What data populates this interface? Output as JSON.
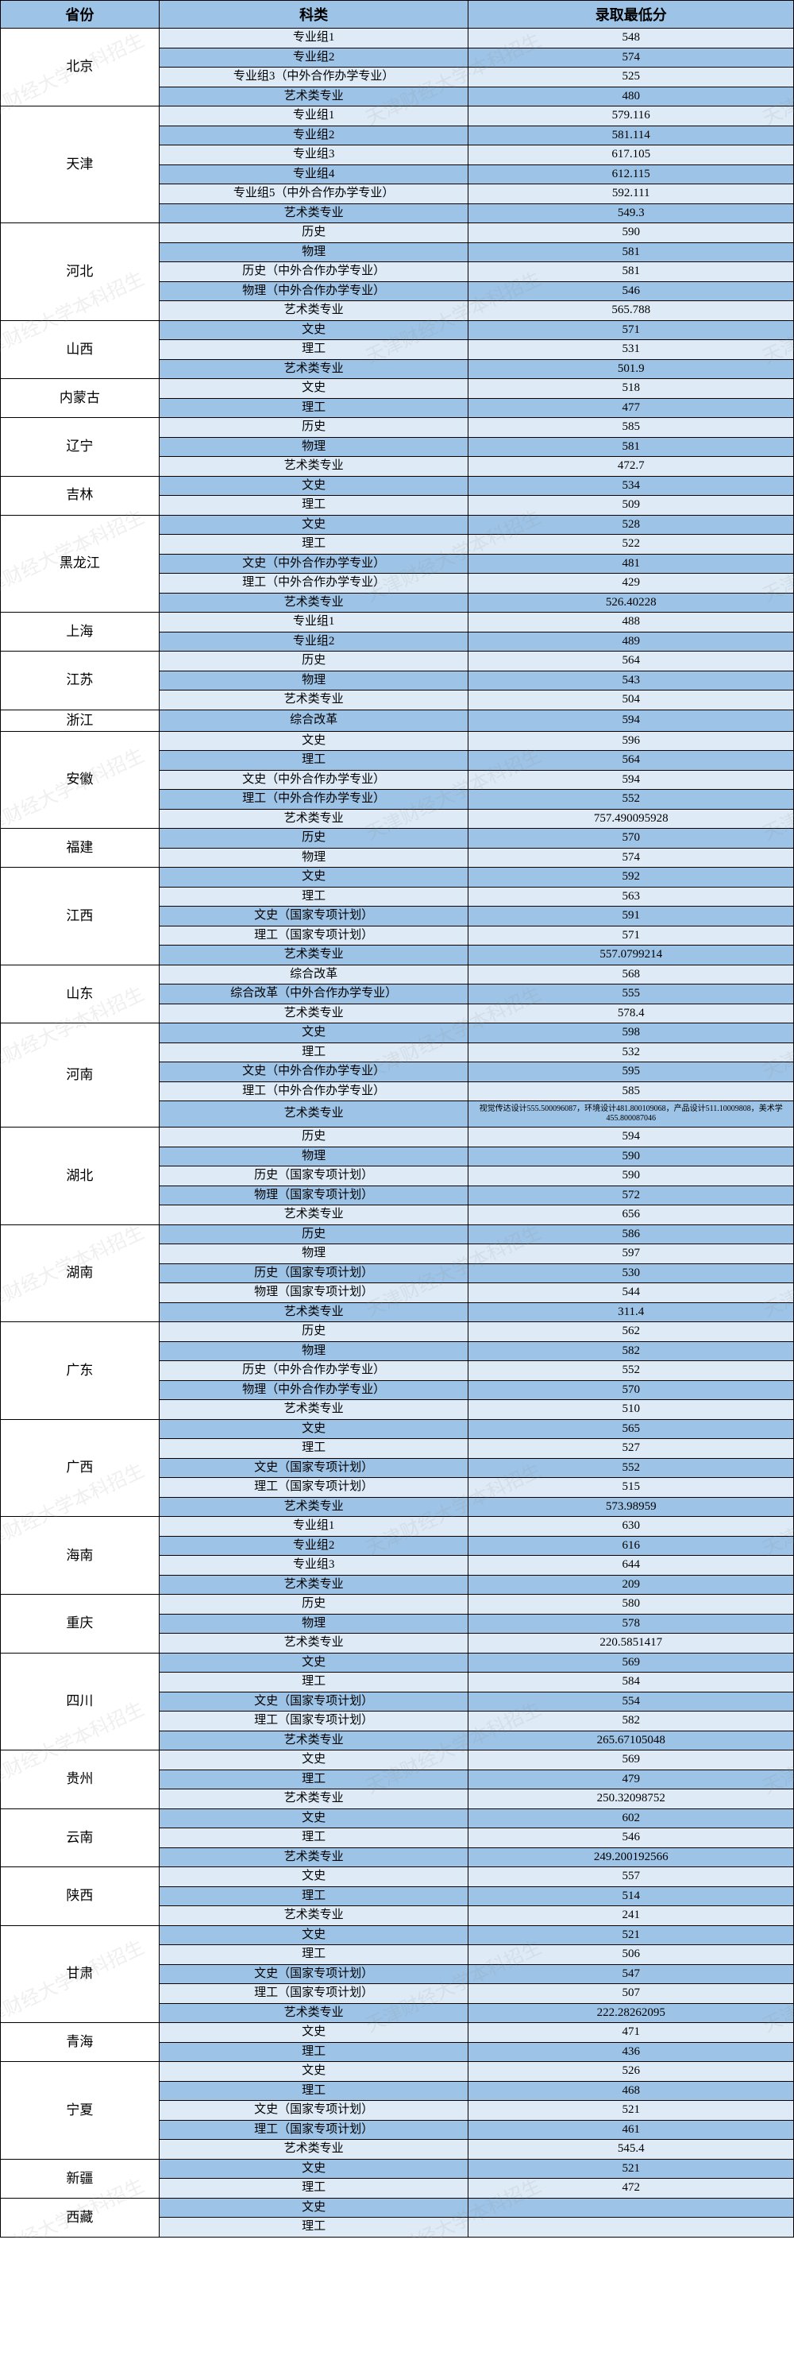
{
  "watermark_text": "天津财经大学本科招生",
  "header": {
    "province": "省份",
    "category": "科类",
    "score": "录取最低分"
  },
  "colors": {
    "header_bg": "#9dc3e6",
    "row_even_bg": "#deebf7",
    "row_odd_bg": "#9dc3e6",
    "border": "#000000",
    "watermark": "rgba(150,150,150,0.15)"
  },
  "provinces": [
    {
      "name": "北京",
      "rows": [
        {
          "cat": "专业组1",
          "score": "548"
        },
        {
          "cat": "专业组2",
          "score": "574"
        },
        {
          "cat": "专业组3（中外合作办学专业）",
          "score": "525"
        },
        {
          "cat": "艺术类专业",
          "score": "480"
        }
      ]
    },
    {
      "name": "天津",
      "rows": [
        {
          "cat": "专业组1",
          "score": "579.116"
        },
        {
          "cat": "专业组2",
          "score": "581.114"
        },
        {
          "cat": "专业组3",
          "score": "617.105"
        },
        {
          "cat": "专业组4",
          "score": "612.115"
        },
        {
          "cat": "专业组5（中外合作办学专业）",
          "score": "592.111"
        },
        {
          "cat": "艺术类专业",
          "score": "549.3"
        }
      ]
    },
    {
      "name": "河北",
      "rows": [
        {
          "cat": "历史",
          "score": "590"
        },
        {
          "cat": "物理",
          "score": "581"
        },
        {
          "cat": "历史（中外合作办学专业）",
          "score": "581"
        },
        {
          "cat": "物理（中外合作办学专业）",
          "score": "546"
        },
        {
          "cat": "艺术类专业",
          "score": "565.788"
        }
      ]
    },
    {
      "name": "山西",
      "rows": [
        {
          "cat": "文史",
          "score": "571"
        },
        {
          "cat": "理工",
          "score": "531"
        },
        {
          "cat": "艺术类专业",
          "score": "501.9"
        }
      ]
    },
    {
      "name": "内蒙古",
      "rows": [
        {
          "cat": "文史",
          "score": "518"
        },
        {
          "cat": "理工",
          "score": "477"
        }
      ]
    },
    {
      "name": "辽宁",
      "rows": [
        {
          "cat": "历史",
          "score": "585"
        },
        {
          "cat": "物理",
          "score": "581"
        },
        {
          "cat": "艺术类专业",
          "score": "472.7"
        }
      ]
    },
    {
      "name": "吉林",
      "rows": [
        {
          "cat": "文史",
          "score": "534"
        },
        {
          "cat": "理工",
          "score": "509"
        }
      ]
    },
    {
      "name": "黑龙江",
      "rows": [
        {
          "cat": "文史",
          "score": "528"
        },
        {
          "cat": "理工",
          "score": "522"
        },
        {
          "cat": "文史（中外合作办学专业）",
          "score": "481"
        },
        {
          "cat": "理工（中外合作办学专业）",
          "score": "429"
        },
        {
          "cat": "艺术类专业",
          "score": "526.40228"
        }
      ]
    },
    {
      "name": "上海",
      "rows": [
        {
          "cat": "专业组1",
          "score": "488"
        },
        {
          "cat": "专业组2",
          "score": "489"
        }
      ]
    },
    {
      "name": "江苏",
      "rows": [
        {
          "cat": "历史",
          "score": "564"
        },
        {
          "cat": "物理",
          "score": "543"
        },
        {
          "cat": "艺术类专业",
          "score": "504"
        }
      ]
    },
    {
      "name": "浙江",
      "rows": [
        {
          "cat": "综合改革",
          "score": "594"
        }
      ]
    },
    {
      "name": "安徽",
      "rows": [
        {
          "cat": "文史",
          "score": "596"
        },
        {
          "cat": "理工",
          "score": "564"
        },
        {
          "cat": "文史（中外合作办学专业）",
          "score": "594"
        },
        {
          "cat": "理工（中外合作办学专业）",
          "score": "552"
        },
        {
          "cat": "艺术类专业",
          "score": "757.490095928"
        }
      ]
    },
    {
      "name": "福建",
      "rows": [
        {
          "cat": "历史",
          "score": "570"
        },
        {
          "cat": "物理",
          "score": "574"
        }
      ]
    },
    {
      "name": "江西",
      "rows": [
        {
          "cat": "文史",
          "score": "592"
        },
        {
          "cat": "理工",
          "score": "563"
        },
        {
          "cat": "文史（国家专项计划）",
          "score": "591"
        },
        {
          "cat": "理工（国家专项计划）",
          "score": "571"
        },
        {
          "cat": "艺术类专业",
          "score": "557.0799214"
        }
      ]
    },
    {
      "name": "山东",
      "rows": [
        {
          "cat": "综合改革",
          "score": "568"
        },
        {
          "cat": "综合改革（中外合作办学专业）",
          "score": "555"
        },
        {
          "cat": "艺术类专业",
          "score": "578.4"
        }
      ]
    },
    {
      "name": "河南",
      "rows": [
        {
          "cat": "文史",
          "score": "598"
        },
        {
          "cat": "理工",
          "score": "532"
        },
        {
          "cat": "文史（中外合作办学专业）",
          "score": "595"
        },
        {
          "cat": "理工（中外合作办学专业）",
          "score": "585"
        },
        {
          "cat": "艺术类专业",
          "score": "视觉传达设计555.500096087，环境设计481.800109068，产品设计511.10009808，美术学455.800087046",
          "small": true
        }
      ]
    },
    {
      "name": "湖北",
      "rows": [
        {
          "cat": "历史",
          "score": "594"
        },
        {
          "cat": "物理",
          "score": "590"
        },
        {
          "cat": "历史（国家专项计划）",
          "score": "590"
        },
        {
          "cat": "物理（国家专项计划）",
          "score": "572"
        },
        {
          "cat": "艺术类专业",
          "score": "656"
        }
      ]
    },
    {
      "name": "湖南",
      "rows": [
        {
          "cat": "历史",
          "score": "586"
        },
        {
          "cat": "物理",
          "score": "597"
        },
        {
          "cat": "历史（国家专项计划）",
          "score": "530"
        },
        {
          "cat": "物理（国家专项计划）",
          "score": "544"
        },
        {
          "cat": "艺术类专业",
          "score": "311.4"
        }
      ]
    },
    {
      "name": "广东",
      "rows": [
        {
          "cat": "历史",
          "score": "562"
        },
        {
          "cat": "物理",
          "score": "582"
        },
        {
          "cat": "历史（中外合作办学专业）",
          "score": "552"
        },
        {
          "cat": "物理（中外合作办学专业）",
          "score": "570"
        },
        {
          "cat": "艺术类专业",
          "score": "510"
        }
      ]
    },
    {
      "name": "广西",
      "rows": [
        {
          "cat": "文史",
          "score": "565"
        },
        {
          "cat": "理工",
          "score": "527"
        },
        {
          "cat": "文史（国家专项计划）",
          "score": "552"
        },
        {
          "cat": "理工（国家专项计划）",
          "score": "515"
        },
        {
          "cat": "艺术类专业",
          "score": "573.98959"
        }
      ]
    },
    {
      "name": "海南",
      "rows": [
        {
          "cat": "专业组1",
          "score": "630"
        },
        {
          "cat": "专业组2",
          "score": "616"
        },
        {
          "cat": "专业组3",
          "score": "644"
        },
        {
          "cat": "艺术类专业",
          "score": "209"
        }
      ]
    },
    {
      "name": "重庆",
      "rows": [
        {
          "cat": "历史",
          "score": "580"
        },
        {
          "cat": "物理",
          "score": "578"
        },
        {
          "cat": "艺术类专业",
          "score": "220.5851417"
        }
      ]
    },
    {
      "name": "四川",
      "rows": [
        {
          "cat": "文史",
          "score": "569"
        },
        {
          "cat": "理工",
          "score": "584"
        },
        {
          "cat": "文史（国家专项计划）",
          "score": "554"
        },
        {
          "cat": "理工（国家专项计划）",
          "score": "582"
        },
        {
          "cat": "艺术类专业",
          "score": "265.67105048"
        }
      ]
    },
    {
      "name": "贵州",
      "rows": [
        {
          "cat": "文史",
          "score": "569"
        },
        {
          "cat": "理工",
          "score": "479"
        },
        {
          "cat": "艺术类专业",
          "score": "250.32098752"
        }
      ]
    },
    {
      "name": "云南",
      "rows": [
        {
          "cat": "文史",
          "score": "602"
        },
        {
          "cat": "理工",
          "score": "546"
        },
        {
          "cat": "艺术类专业",
          "score": "249.200192566"
        }
      ]
    },
    {
      "name": "陕西",
      "rows": [
        {
          "cat": "文史",
          "score": "557"
        },
        {
          "cat": "理工",
          "score": "514"
        },
        {
          "cat": "艺术类专业",
          "score": "241"
        }
      ]
    },
    {
      "name": "甘肃",
      "rows": [
        {
          "cat": "文史",
          "score": "521"
        },
        {
          "cat": "理工",
          "score": "506"
        },
        {
          "cat": "文史（国家专项计划）",
          "score": "547"
        },
        {
          "cat": "理工（国家专项计划）",
          "score": "507"
        },
        {
          "cat": "艺术类专业",
          "score": "222.28262095"
        }
      ]
    },
    {
      "name": "青海",
      "rows": [
        {
          "cat": "文史",
          "score": "471"
        },
        {
          "cat": "理工",
          "score": "436"
        }
      ]
    },
    {
      "name": "宁夏",
      "rows": [
        {
          "cat": "文史",
          "score": "526"
        },
        {
          "cat": "理工",
          "score": "468"
        },
        {
          "cat": "文史（国家专项计划）",
          "score": "521"
        },
        {
          "cat": "理工（国家专项计划）",
          "score": "461"
        },
        {
          "cat": "艺术类专业",
          "score": "545.4"
        }
      ]
    },
    {
      "name": "新疆",
      "rows": [
        {
          "cat": "文史",
          "score": "521"
        },
        {
          "cat": "理工",
          "score": "472"
        }
      ]
    },
    {
      "name": "西藏",
      "rows": [
        {
          "cat": "文史",
          "score": ""
        },
        {
          "cat": "理工",
          "score": ""
        }
      ]
    }
  ]
}
